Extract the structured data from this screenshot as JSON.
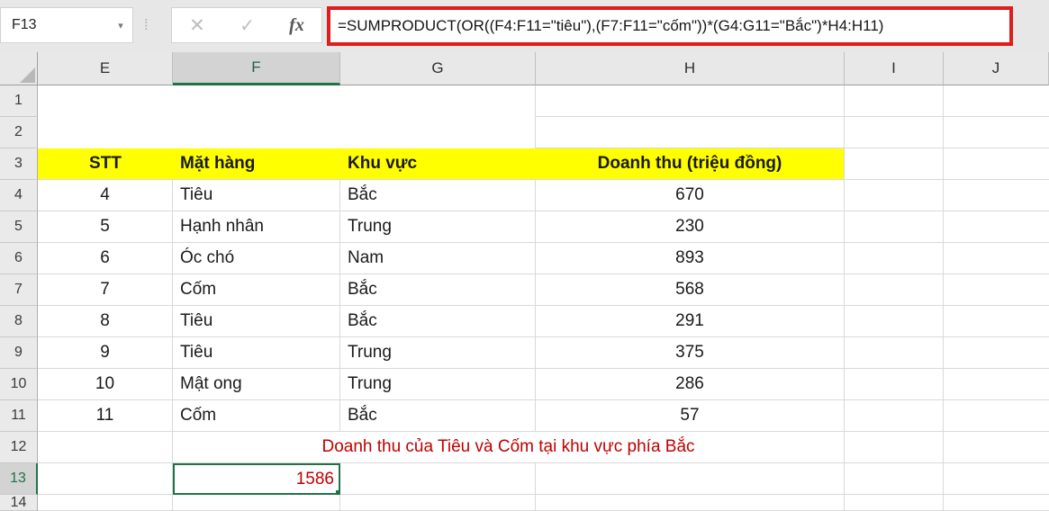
{
  "topbar": {
    "name_box_value": "F13",
    "formula": "=SUMPRODUCT(OR((F4:F11=\"tiêu\"),(F7:F11=\"cốm\"))*(G4:G11=\"Bắc\")*H4:H11)",
    "icons": {
      "dropdown": "▾",
      "separator": "⁞",
      "cancel": "✕",
      "enter": "✓",
      "function": "fx"
    }
  },
  "colors": {
    "selection_green": "#217346",
    "header_highlight_yellow": "#ffff00",
    "formula_border_red": "#df1d1d",
    "red_text": "#c00000"
  },
  "column_letters": [
    "E",
    "F",
    "G",
    "H",
    "I",
    "J"
  ],
  "row_numbers": [
    "1",
    "2",
    "3",
    "4",
    "5",
    "6",
    "7",
    "8",
    "9",
    "10",
    "11",
    "12",
    "13",
    "14"
  ],
  "table": {
    "selected_cell": "F13",
    "headers": {
      "stt": "STT",
      "mat_hang": "Mặt hàng",
      "khu_vuc": "Khu vực",
      "doanh_thu": "Doanh thu (triệu đồng)"
    },
    "rows": [
      {
        "stt": "4",
        "mat_hang": "Tiêu",
        "khu_vuc": "Bắc",
        "doanh_thu": "670"
      },
      {
        "stt": "5",
        "mat_hang": "Hạnh nhân",
        "khu_vuc": "Trung",
        "doanh_thu": "230"
      },
      {
        "stt": "6",
        "mat_hang": "Óc chó",
        "khu_vuc": "Nam",
        "doanh_thu": "893"
      },
      {
        "stt": "7",
        "mat_hang": "Cốm",
        "khu_vuc": "Bắc",
        "doanh_thu": "568"
      },
      {
        "stt": "8",
        "mat_hang": "Tiêu",
        "khu_vuc": "Bắc",
        "doanh_thu": "291"
      },
      {
        "stt": "9",
        "mat_hang": "Tiêu",
        "khu_vuc": "Trung",
        "doanh_thu": "375"
      },
      {
        "stt": "10",
        "mat_hang": "Mật ong",
        "khu_vuc": "Trung",
        "doanh_thu": "286"
      },
      {
        "stt": "11",
        "mat_hang": "Cốm",
        "khu_vuc": "Bắc",
        "doanh_thu": "57"
      }
    ],
    "note": "Doanh thu của Tiêu và Cốm tại khu vực phía Bắc",
    "result": "1586"
  }
}
